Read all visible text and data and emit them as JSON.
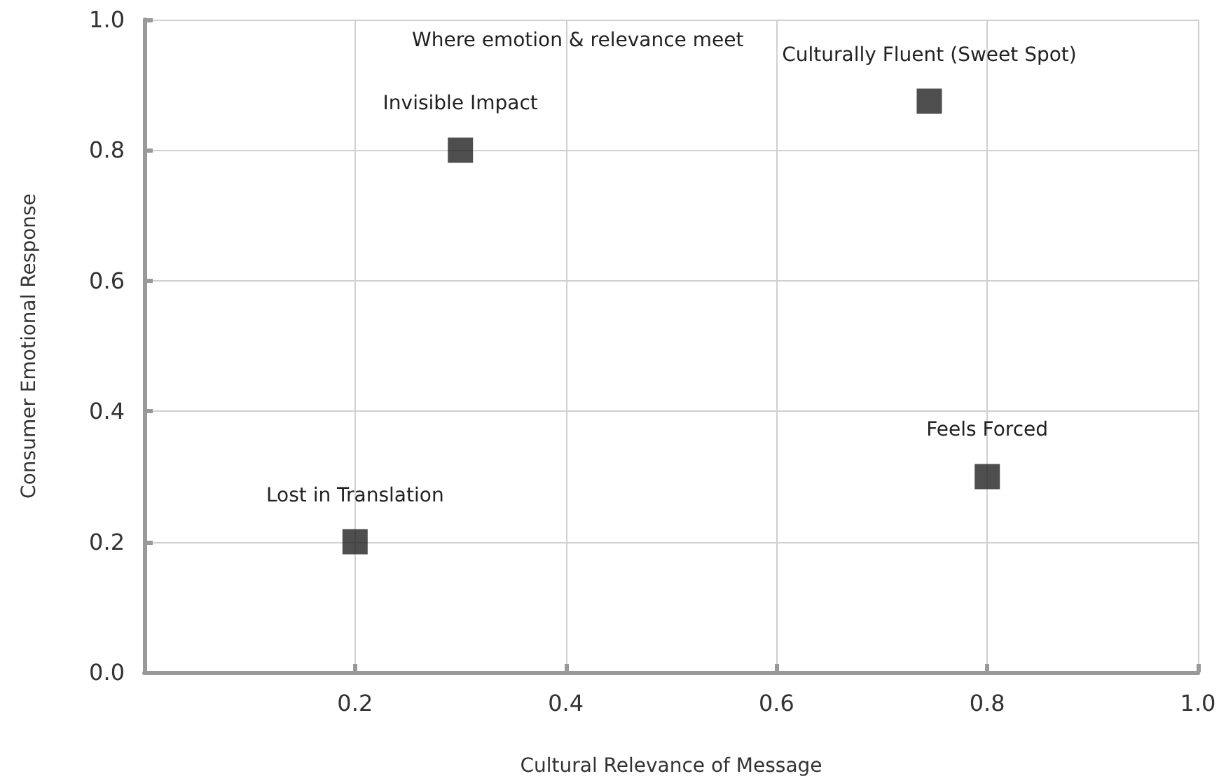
{
  "chart_data": {
    "type": "scatter",
    "title": "Where emotion & relevance meet",
    "xlabel": "Cultural Relevance of Message",
    "ylabel": "Consumer Emotional Response",
    "x": [
      0.2,
      0.3,
      0.745,
      0.8
    ],
    "series": [
      {
        "color": "#222222",
        "values": [
          0.2,
          0.8,
          0.875,
          0.3
        ]
      }
    ],
    "annotations": [
      {
        "text": "Lost in Translation",
        "x": 0.2,
        "y": 0.2
      },
      {
        "text": "Invisible Impact",
        "x": 0.3,
        "y": 0.8
      },
      {
        "text": "Culturally Fluent (Sweet Spot)",
        "x": 0.745,
        "y": 0.875
      },
      {
        "text": "Feels Forced",
        "x": 0.8,
        "y": 0.3
      }
    ],
    "xlim": [
      0,
      1
    ],
    "ylim": [
      0,
      1
    ],
    "xticks": [
      {
        "value": 0,
        "label": null
      },
      0.2,
      0.4,
      0.6,
      0.8,
      {
        "value": 1,
        "label": "1.0"
      }
    ],
    "yticks": [
      {
        "value": 0,
        "label": "0.0"
      },
      0.2,
      0.4,
      0.6,
      0.8,
      {
        "value": 1,
        "label": "1.0"
      }
    ],
    "grid": true,
    "marker": "square"
  }
}
